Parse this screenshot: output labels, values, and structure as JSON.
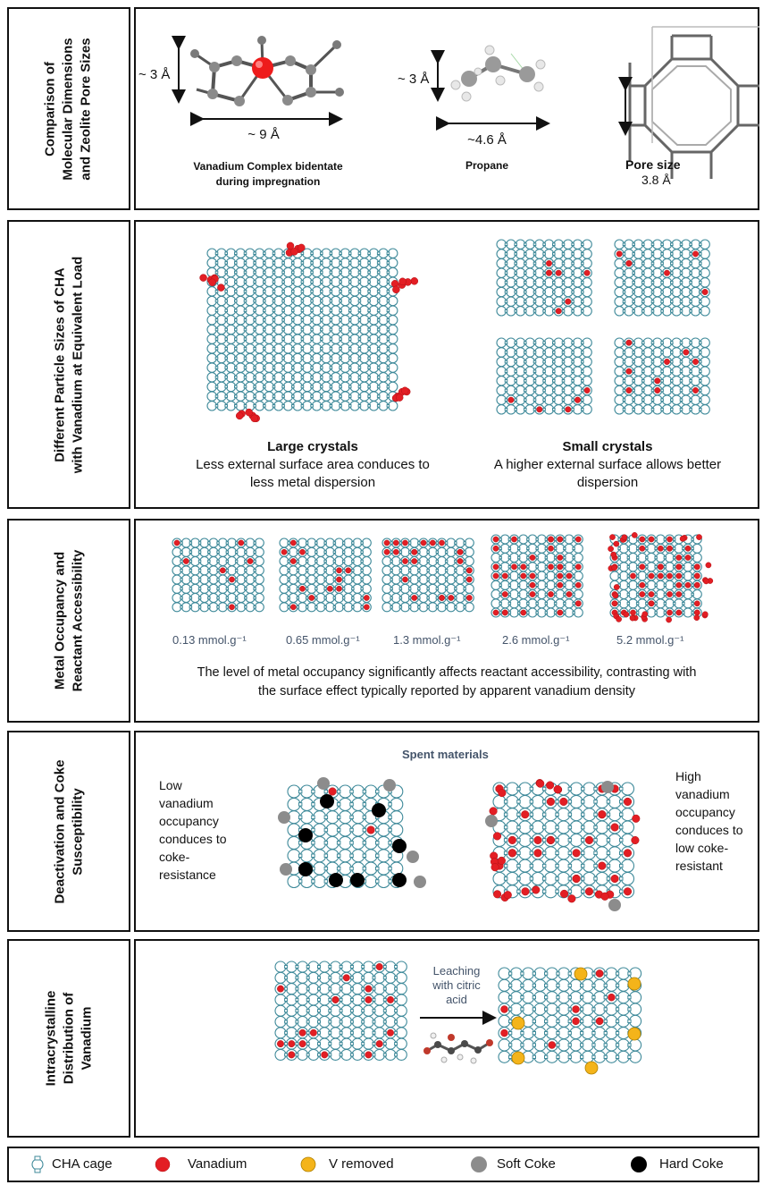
{
  "sections": [
    {
      "id": "s1",
      "label_line1": "Comparison of",
      "label_line2": "Molecular Dimensions",
      "label_line3": "and Zeolite Pore Sizes"
    },
    {
      "id": "s2",
      "label_line1": "Different Particle Sizes of CHA",
      "label_line2": "with Vanadium at Equivalent Load"
    },
    {
      "id": "s3",
      "label_line1": "Metal Occupancy and",
      "label_line2": "Reactant Accessibility"
    },
    {
      "id": "s4",
      "label_line1": "Deactivation and  Coke",
      "label_line2": "Susceptibility"
    },
    {
      "id": "s5",
      "label_line1": "Intracrystalline",
      "label_line2": "Distribution of",
      "label_line3": "Vanadium"
    }
  ],
  "molecules": {
    "vanadium": {
      "height": "~ 3 Å",
      "width": "~ 9 Å",
      "caption_line1": "Vanadium Complex bidentate",
      "caption_line2": "during impregnation"
    },
    "propane": {
      "height": "~ 3 Å",
      "width": "~4.6 Å",
      "caption": "Propane"
    },
    "pore": {
      "caption": "Pore size",
      "value": "3.8 Å"
    }
  },
  "crystals": {
    "large": {
      "title": "Large crystals",
      "desc_line1": "Less external surface area conduces to",
      "desc_line2": "less metal dispersion"
    },
    "small": {
      "title": "Small crystals",
      "desc_line1": "A higher external surface allows better",
      "desc_line2": "dispersion"
    }
  },
  "loads": [
    "0.13  mmol.g⁻¹",
    "0.65 mmol.g⁻¹",
    "1.3 mmol.g⁻¹",
    "2.6 mmol.g⁻¹",
    "5.2 mmol.g⁻¹"
  ],
  "occupancy_text_line1": "The level of metal occupancy significantly affects reactant accessibility, contrasting with",
  "occupancy_text_line2": "the surface effect typically reported  by apparent vanadium density",
  "deactivation": {
    "spent": "Spent materials",
    "low": [
      "Low",
      "vanadium",
      "occupancy",
      "conduces to",
      "coke-",
      "resistance"
    ],
    "high": [
      "High",
      "vanadium",
      "occupancy",
      "conduces to",
      "low coke-",
      "resistant"
    ]
  },
  "leaching": {
    "line1": "Leaching",
    "line2": "with citric",
    "line3": "acid"
  },
  "legend": {
    "cage": "CHA cage",
    "vanadium": "Vanadium",
    "removed": "V removed",
    "soft": "Soft Coke",
    "hard": "Hard Coke"
  },
  "colors": {
    "cage": "#3f8a9a",
    "vanadium": "#e31e24",
    "removed": "#f4b41a",
    "soft": "#8c8c8c",
    "hard": "#000000",
    "label": "#44546a"
  }
}
